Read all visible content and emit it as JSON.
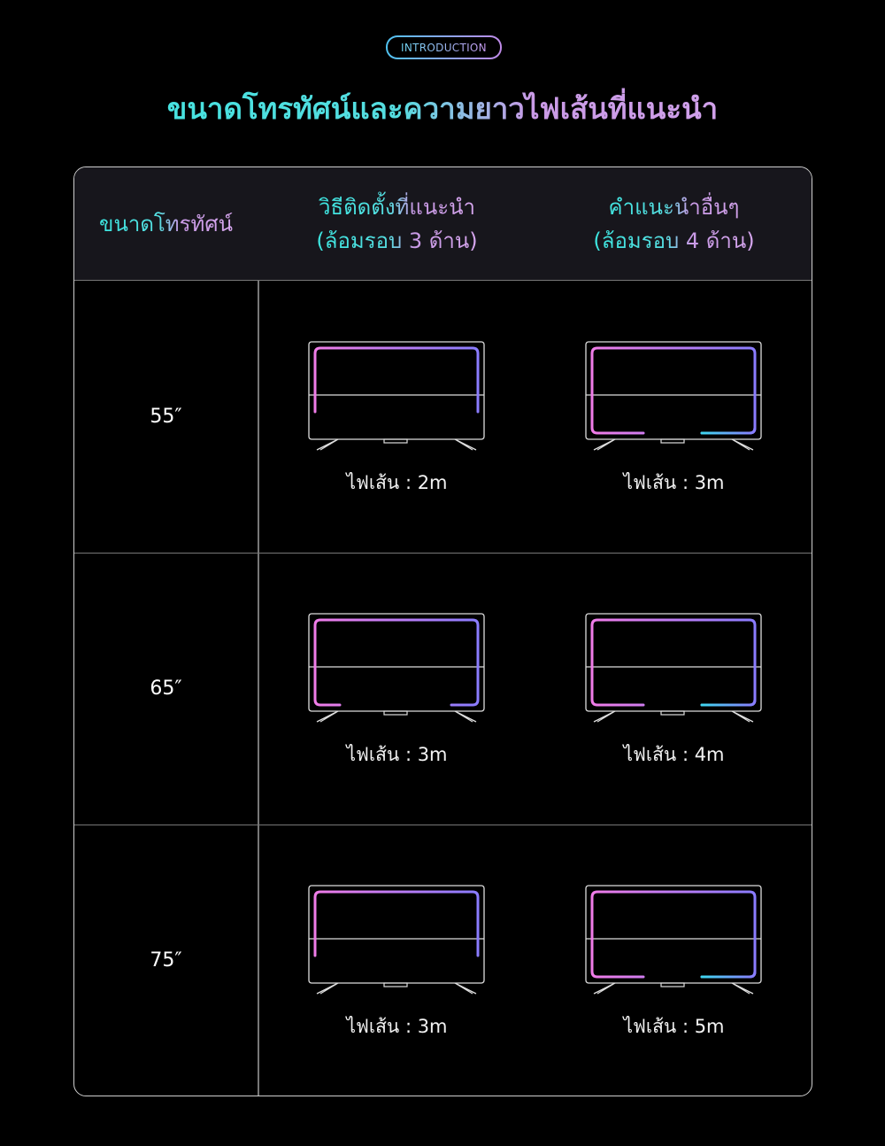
{
  "badge": "INTRODUCTION",
  "title": "ขนาดโทรทัศน์และความยาวไฟเส้นที่แนะนำ",
  "colors": {
    "cyan": "#3ce6e0",
    "pink": "#f07ce8",
    "violet": "#8a7cff",
    "blue": "#3fd6f0"
  },
  "table": {
    "headers": {
      "size": "ขนาดโทรทัศน์",
      "col1_line1": "วิธีติดตั้งที่แนะนำ",
      "col1_line2": "(ล้อมรอบ 3 ด้าน)",
      "col2_line1": "คำแนะนำอื่นๆ",
      "col2_line2": "(ล้อมรอบ 4 ด้าน)"
    },
    "rows": [
      {
        "size": "55″",
        "opt1": {
          "label": "ไฟเส้น : 2m",
          "layout": "3-side"
        },
        "opt2": {
          "label": "ไฟเส้น : 3m",
          "layout": "4-side"
        }
      },
      {
        "size": "65″",
        "opt1": {
          "label": "ไฟเส้น : 3m",
          "layout": "3-side-corners"
        },
        "opt2": {
          "label": "ไฟเส้น : 4m",
          "layout": "4-side"
        }
      },
      {
        "size": "75″",
        "opt1": {
          "label": "ไฟเส้น : 3m",
          "layout": "3-side"
        },
        "opt2": {
          "label": "ไฟเส้น : 5m",
          "layout": "4-side"
        }
      }
    ]
  }
}
